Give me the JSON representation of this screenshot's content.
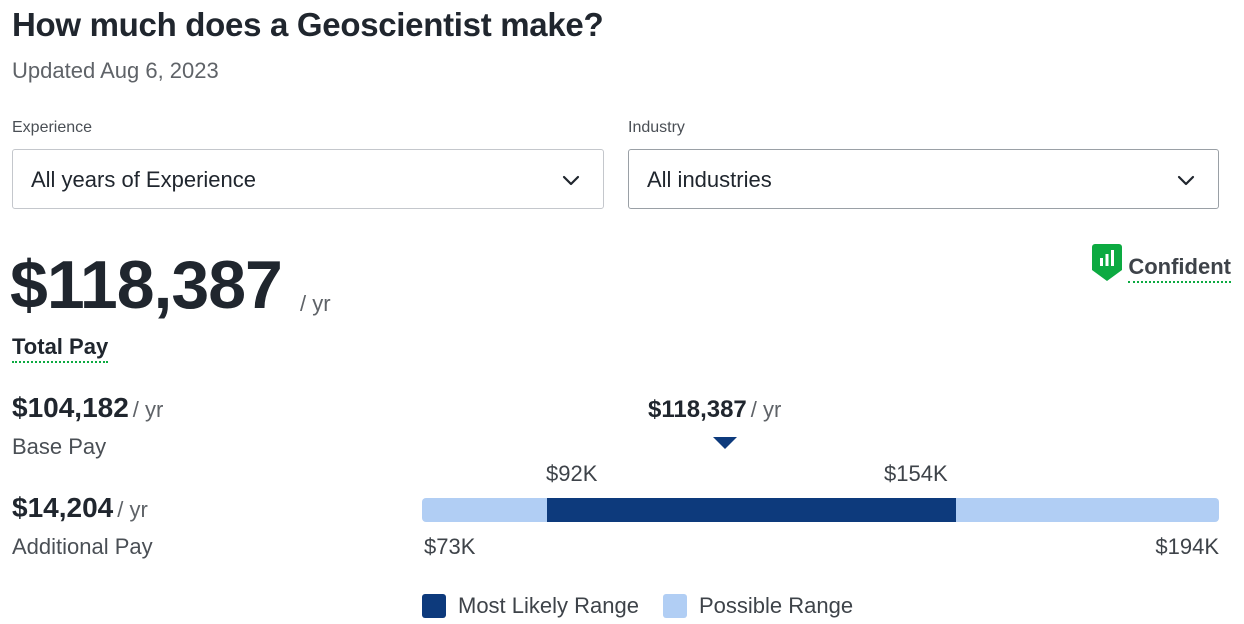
{
  "header": {
    "title": "How much does a Geoscientist make?",
    "updated": "Updated Aug 6, 2023"
  },
  "filters": {
    "experience": {
      "label": "Experience",
      "value": "All years of Experience",
      "icon": "chevron-down-icon"
    },
    "industry": {
      "label": "Industry",
      "value": "All industries",
      "icon": "chevron-down-icon"
    }
  },
  "total_pay": {
    "amount": "$118,387",
    "unit": "/ yr",
    "label": "Total Pay"
  },
  "confidence": {
    "label": "Confident",
    "icon": "bar-chart-shield-icon",
    "color": "#0caa41"
  },
  "base_pay": {
    "amount": "$104,182",
    "unit": "/ yr",
    "label": "Base Pay"
  },
  "additional_pay": {
    "amount": "$14,204",
    "unit": "/ yr",
    "label": "Additional Pay"
  },
  "range": {
    "median_amount": "$118,387",
    "median_unit": "/ yr",
    "likely_low_label": "$92K",
    "likely_high_label": "$154K",
    "possible_low_label": "$73K",
    "possible_high_label": "$194K",
    "possible_low": 73,
    "possible_high": 194,
    "likely_low": 92,
    "likely_high": 154,
    "median": 118.387
  },
  "legend": {
    "most_likely": "Most Likely Range",
    "possible": "Possible Range"
  },
  "colors": {
    "most_likely": "#0d3a7c",
    "possible": "#b1cef4",
    "accent_green": "#0caa41"
  }
}
